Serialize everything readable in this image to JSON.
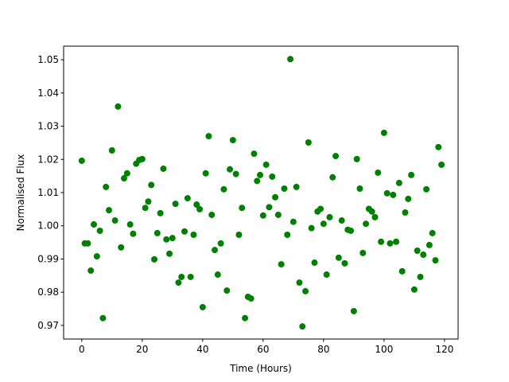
{
  "chart_data": {
    "type": "scatter",
    "xlabel": "Time (Hours)",
    "ylabel": "Normalised Flux",
    "color": "green",
    "x": [
      0,
      1,
      2,
      3,
      4,
      5,
      6,
      7,
      8,
      9,
      10,
      11,
      12,
      13,
      14,
      15,
      16,
      17,
      18,
      19,
      20,
      21,
      22,
      23,
      24,
      25,
      26,
      27,
      28,
      29,
      30,
      31,
      32,
      33,
      34,
      35,
      36,
      37,
      38,
      39,
      40,
      41,
      42,
      43,
      44,
      45,
      46,
      47,
      48,
      49,
      50,
      51,
      52,
      53,
      54,
      55,
      56,
      57,
      58,
      59,
      60,
      61,
      62,
      63,
      64,
      65,
      66,
      67,
      68,
      69,
      70,
      71,
      72,
      73,
      74,
      75,
      76,
      77,
      78,
      79,
      80,
      81,
      82,
      83,
      84,
      85,
      86,
      87,
      88,
      89,
      90,
      91,
      92,
      93,
      94,
      95,
      96,
      97,
      98,
      99,
      100,
      101,
      102,
      103,
      104,
      105,
      106,
      107,
      108,
      109,
      110,
      111,
      112,
      113,
      114,
      115,
      116,
      117,
      118,
      119
    ],
    "y": [
      1.0196,
      0.9947,
      0.9947,
      0.9865,
      1.0004,
      0.9908,
      0.9985,
      0.9722,
      1.0117,
      1.0047,
      1.0227,
      1.0016,
      1.0359,
      0.9935,
      1.0143,
      1.0158,
      1.0004,
      0.9976,
      1.0187,
      1.0198,
      1.0201,
      1.0054,
      1.0073,
      1.0123,
      0.9899,
      0.9978,
      1.0038,
      1.0172,
      0.9959,
      0.9916,
      0.9963,
      1.0066,
      0.9829,
      0.9846,
      0.9983,
      1.0083,
      0.9846,
      0.9973,
      1.0064,
      1.005,
      0.9755,
      1.0158,
      1.027,
      1.0033,
      0.9927,
      0.9853,
      0.9947,
      1.011,
      0.9805,
      1.017,
      1.0258,
      1.0156,
      0.9973,
      1.0054,
      0.9722,
      0.9786,
      0.9781,
      1.0217,
      1.0135,
      1.0153,
      1.0031,
      1.0184,
      1.0056,
      1.0148,
      1.0086,
      1.0033,
      0.9884,
      1.0112,
      0.9973,
      1.0502,
      1.0012,
      1.0117,
      0.9829,
      0.9697,
      0.9803,
      1.0251,
      0.9993,
      0.9889,
      1.0043,
      1.0051,
      1.0006,
      0.9853,
      1.0026,
      1.0146,
      1.021,
      0.9904,
      1.0016,
      0.9887,
      0.9988,
      0.9985,
      0.9743,
      1.0201,
      1.0112,
      0.9918,
      1.0006,
      1.0051,
      1.0043,
      1.0026,
      1.016,
      0.9952,
      1.028,
      1.0098,
      0.9947,
      1.0093,
      0.9952,
      1.0129,
      0.9863,
      1.004,
      1.0081,
      1.0153,
      0.9808,
      0.9925,
      0.9846,
      0.9913,
      1.011,
      0.9942,
      0.9978,
      0.9896,
      1.0237,
      1.0184
    ],
    "xlim": [
      -6,
      124.5
    ],
    "ylim": [
      0.9659,
      1.0541
    ],
    "xticks": [
      0,
      20,
      40,
      60,
      80,
      100,
      120
    ],
    "yticks": [
      0.97,
      0.98,
      0.99,
      {
        "value": 1,
        "label": "1.00"
      },
      1.01,
      1.02,
      1.03,
      1.04,
      1.05
    ]
  }
}
